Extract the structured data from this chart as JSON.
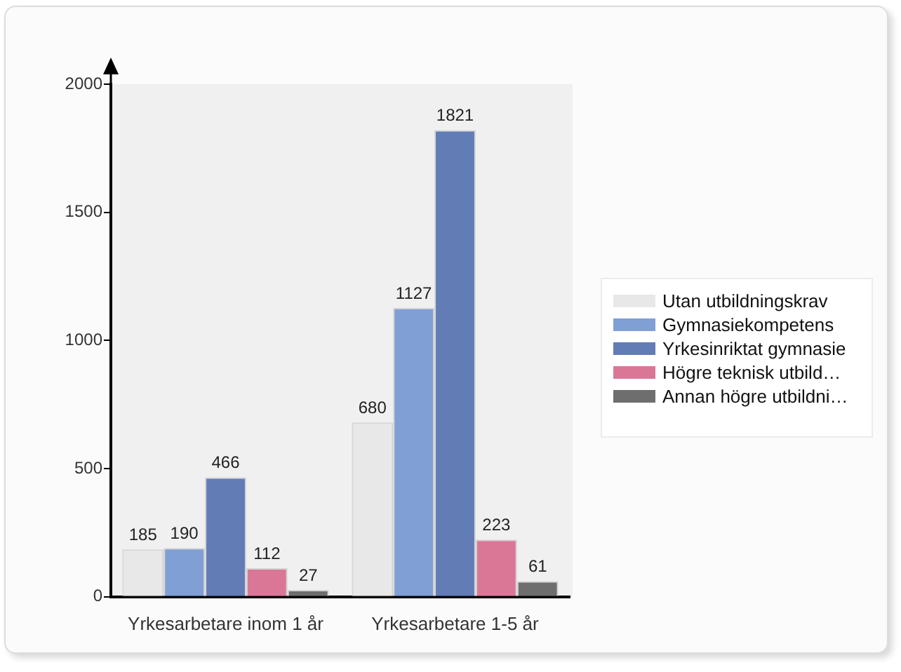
{
  "chart_data": {
    "type": "bar",
    "categories": [
      "Yrkesarbetare inom 1 år",
      "Yrkesarbetare 1-5 år"
    ],
    "series": [
      {
        "name": "Utan utbildningskrav",
        "color": "#e8e8e8",
        "values": [
          185,
          680
        ]
      },
      {
        "name": "Gymnasiekompetens",
        "color": "#7f9fd5",
        "values": [
          190,
          1127
        ]
      },
      {
        "name": "Yrkesinriktat gymnasie",
        "color": "#627cb6",
        "values": [
          466,
          1821
        ]
      },
      {
        "name": "Högre teknisk utbild…",
        "color": "#da7797",
        "values": [
          112,
          223
        ]
      },
      {
        "name": "Annan högre utbildni…",
        "color": "#6e6e6e",
        "values": [
          27,
          61
        ]
      }
    ],
    "ylim": [
      0,
      2000
    ],
    "yticks": [
      0,
      500,
      1000,
      1500,
      2000
    ],
    "grid": false,
    "legend": "right",
    "data_labels": true
  }
}
